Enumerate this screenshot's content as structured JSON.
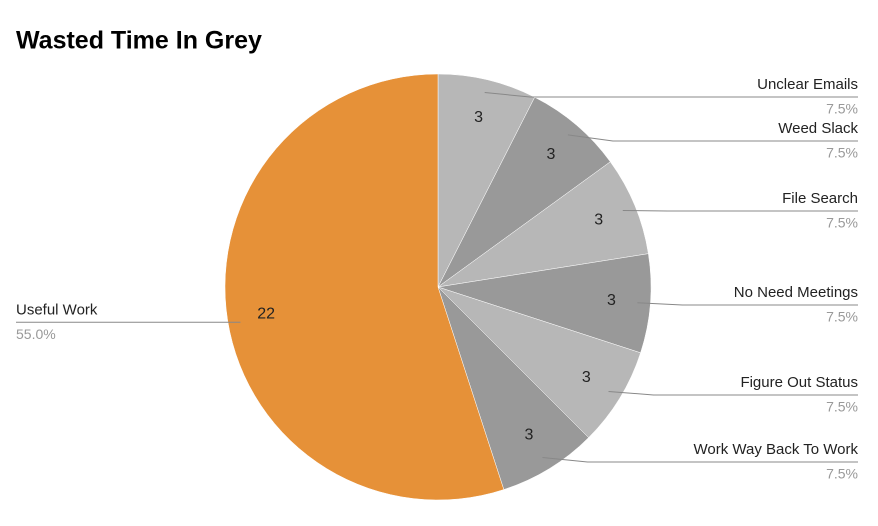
{
  "chart_data": {
    "type": "pie",
    "title": "Wasted Time In Grey",
    "categories": [
      "Unclear Emails",
      "Weed Slack",
      "File Search",
      "No Need Meetings",
      "Figure Out Status",
      "Work Way Back To Work",
      "Useful Work"
    ],
    "values": [
      3,
      3,
      3,
      3,
      3,
      3,
      22
    ],
    "percent_labels": [
      "7.5%",
      "7.5%",
      "7.5%",
      "7.5%",
      "7.5%",
      "7.5%",
      "55.0%"
    ],
    "colors": [
      "#b7b7b7",
      "#999999",
      "#b7b7b7",
      "#999999",
      "#b7b7b7",
      "#999999",
      "#e69138"
    ]
  }
}
